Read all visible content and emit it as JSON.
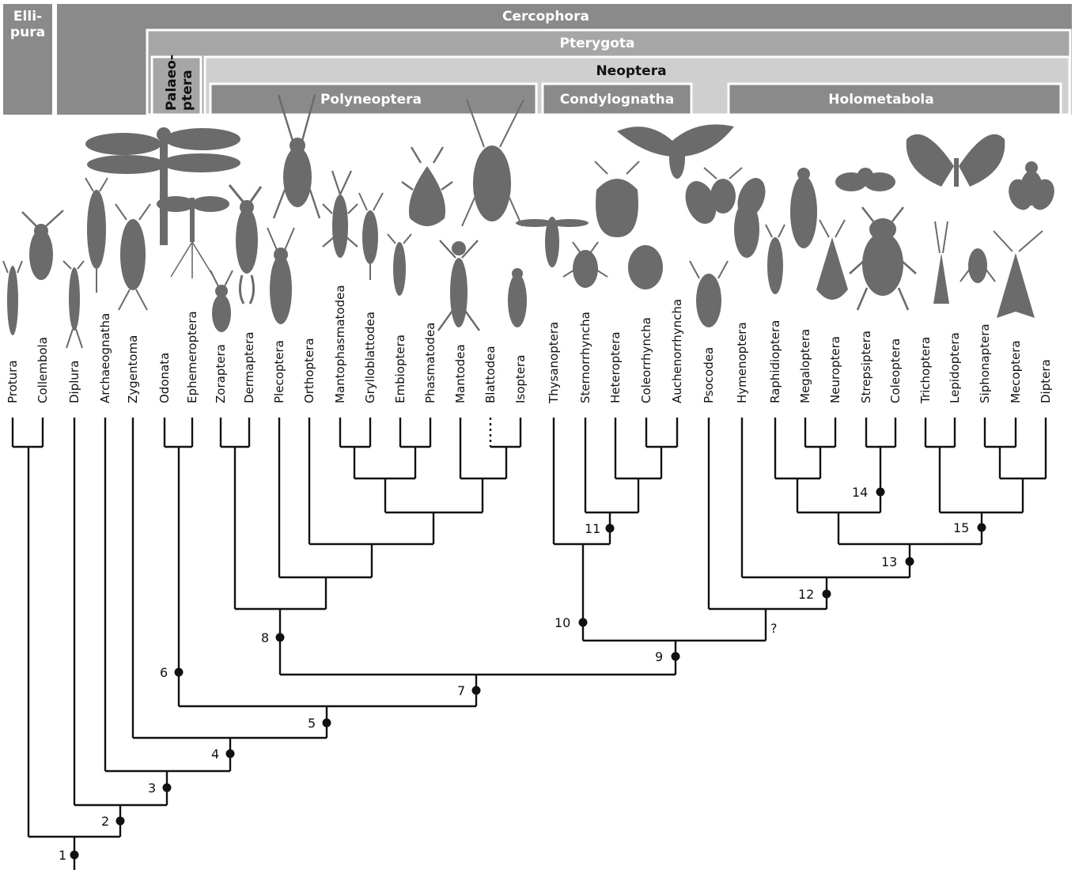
{
  "groups": {
    "ellipura": "Elli-\npura",
    "cercophora": "Cercophora",
    "pterygota": "Pterygota",
    "palaeoptera": "Palaeo-\nptera",
    "neoptera": "Neoptera",
    "polyneoptera": "Polyneoptera",
    "condylognatha": "Condylognatha",
    "holometabola": "Holometabola"
  },
  "taxa": [
    "Protura",
    "Collembola",
    "Diplura",
    "Archaeognatha",
    "Zygentoma",
    "Odonata",
    "Ephemeroptera",
    "Zoraptera",
    "Dermaptera",
    "Plecoptera",
    "Orthoptera",
    "Mantophasmatodea",
    "Grylloblattodea",
    "Embioptera",
    "Phasmatodea",
    "Mantodea",
    "Blattodea",
    "Isoptera",
    "Thysanoptera",
    "Sternorrhyncha",
    "Heteroptera",
    "Coleorrhyncha",
    "Auchenorrhyncha",
    "Psocodea",
    "Hymenoptera",
    "Raphidioptera",
    "Megaloptera",
    "Neuroptera",
    "Strepsiptera",
    "Coleoptera",
    "Trichoptera",
    "Lepidoptera",
    "Siphonaptera",
    "Mecoptera",
    "Diptera"
  ],
  "nodes": [
    "1",
    "2",
    "3",
    "4",
    "5",
    "6",
    "7",
    "8",
    "9",
    "10",
    "11",
    "12",
    "13",
    "14",
    "15"
  ],
  "uncertain_mark": "?",
  "colors": {
    "band_dark": "#8a8a8a",
    "band_mid": "#a6a6a6",
    "band_light": "#cfcfcf",
    "silhouette": "#6b6b6b",
    "line": "#111111"
  }
}
